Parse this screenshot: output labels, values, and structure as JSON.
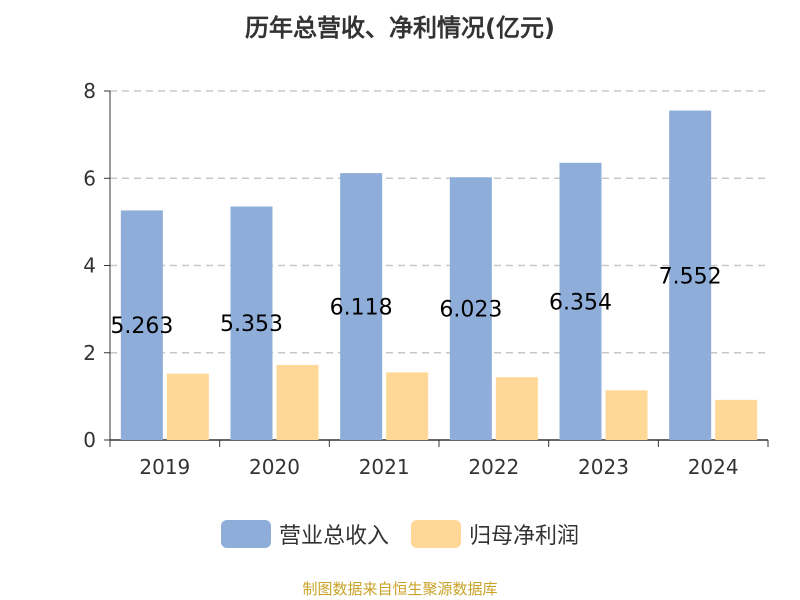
{
  "title": "历年总营收、净利情况(亿元)",
  "source": "制图数据来自恒生聚源数据库",
  "colors": {
    "revenue": "#8eadd9",
    "profit": "#ffd897"
  },
  "legend": {
    "revenue_label": "营业总收入",
    "profit_label": "归母净利润"
  },
  "chart_data": {
    "type": "bar",
    "title": "历年总营收、净利情况(亿元)",
    "categories": [
      "2019",
      "2020",
      "2021",
      "2022",
      "2023",
      "2024"
    ],
    "series": [
      {
        "name": "营业总收入",
        "values": [
          5.263,
          5.353,
          6.118,
          6.023,
          6.354,
          7.552
        ],
        "labels": [
          "5.263",
          "5.353",
          "6.118",
          "6.023",
          "6.354",
          "7.552"
        ]
      },
      {
        "name": "归母净利润",
        "values": [
          1.52,
          1.72,
          1.55,
          1.44,
          1.14,
          0.92
        ]
      }
    ],
    "ylim": [
      0,
      8
    ],
    "yticks": [
      "0",
      "2",
      "4",
      "6",
      "8"
    ],
    "grid": true,
    "legend_position": "bottom"
  }
}
